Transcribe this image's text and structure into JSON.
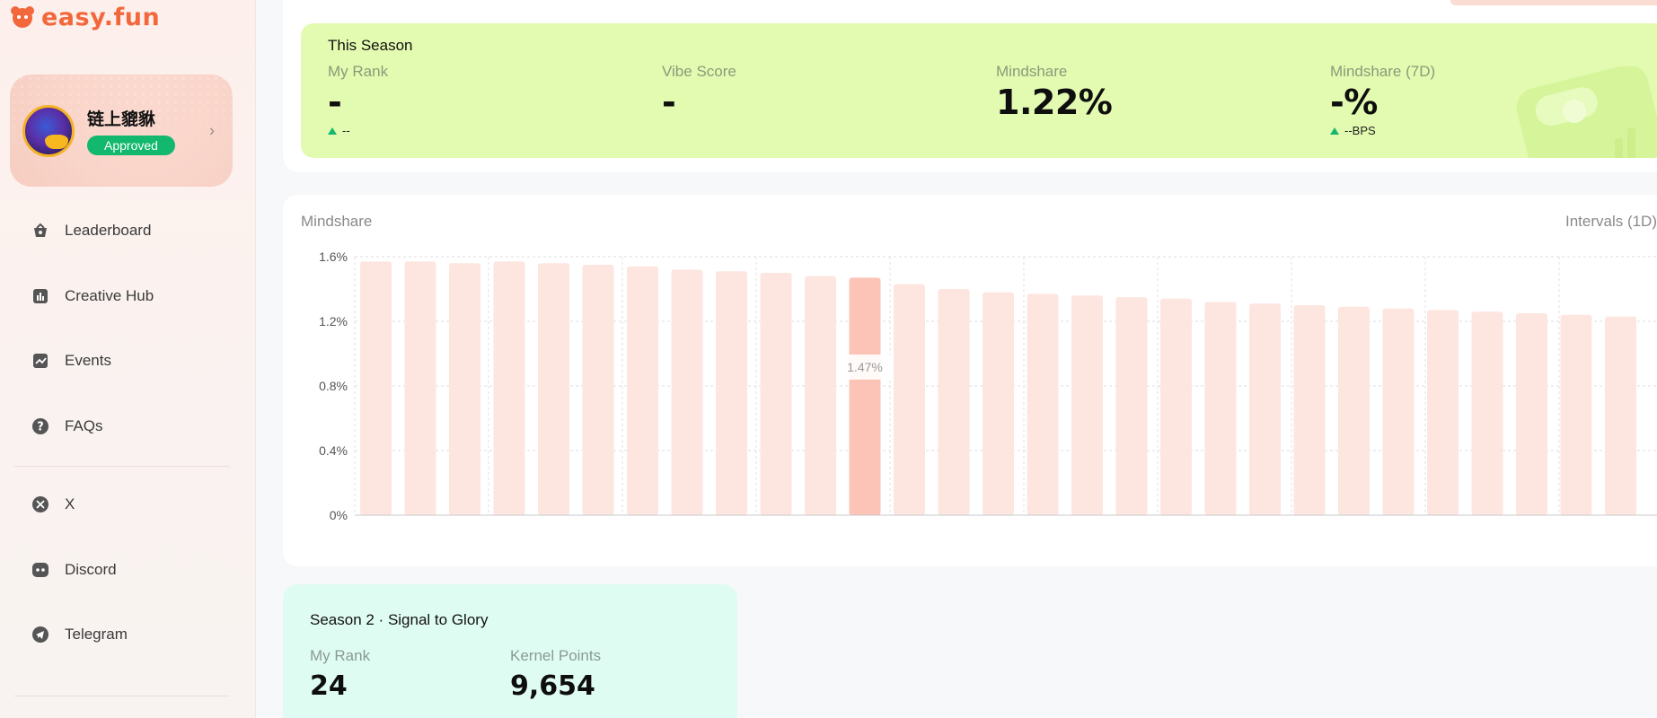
{
  "brand": {
    "name": "easy.fun",
    "accent": "#f2683c"
  },
  "profile": {
    "name": "链上貔貅",
    "status": "Approved"
  },
  "sidebar": {
    "items": [
      {
        "label": "Leaderboard",
        "icon": "basket-icon"
      },
      {
        "label": "Creative Hub",
        "icon": "bar-chart-icon"
      },
      {
        "label": "Events",
        "icon": "trend-icon"
      },
      {
        "label": "FAQs",
        "icon": "question-icon"
      },
      {
        "label": "X",
        "icon": "x-icon"
      },
      {
        "label": "Discord",
        "icon": "discord-icon"
      },
      {
        "label": "Telegram",
        "icon": "telegram-icon"
      }
    ]
  },
  "season": {
    "title": "This Season",
    "stats": [
      {
        "label": "My Rank",
        "value": "-",
        "delta": "--"
      },
      {
        "label": "Vibe Score",
        "value": "-",
        "delta": ""
      },
      {
        "label": "Mindshare",
        "value": "1.22%",
        "delta": ""
      },
      {
        "label": "Mindshare (7D)",
        "value": "-%",
        "delta": "--BPS"
      }
    ],
    "card_color": "#e3fbb0"
  },
  "chart": {
    "title": "Mindshare",
    "interval_label": "Intervals (1D)",
    "tooltip": "1.47%"
  },
  "chart_data": {
    "type": "bar",
    "title": "Mindshare",
    "xlabel": "",
    "ylabel": "",
    "y_ticks": [
      "0%",
      "0.4%",
      "0.8%",
      "1.2%",
      "1.6%"
    ],
    "ylim": [
      0,
      1.6
    ],
    "highlight_index": 11,
    "highlight_label": "1.47%",
    "values": [
      1.57,
      1.57,
      1.56,
      1.57,
      1.56,
      1.55,
      1.54,
      1.52,
      1.51,
      1.5,
      1.48,
      1.47,
      1.43,
      1.4,
      1.38,
      1.37,
      1.36,
      1.35,
      1.34,
      1.32,
      1.31,
      1.3,
      1.29,
      1.28,
      1.27,
      1.26,
      1.25,
      1.24,
      1.23
    ],
    "colors": {
      "bar": "#fde6e0",
      "highlight": "#fcc4b6"
    },
    "grid": true
  },
  "season2": {
    "title": "Season 2 · Signal to Glory",
    "stats": [
      {
        "label": "My Rank",
        "value": "24"
      },
      {
        "label": "Kernel Points",
        "value": "9,654"
      }
    ]
  }
}
